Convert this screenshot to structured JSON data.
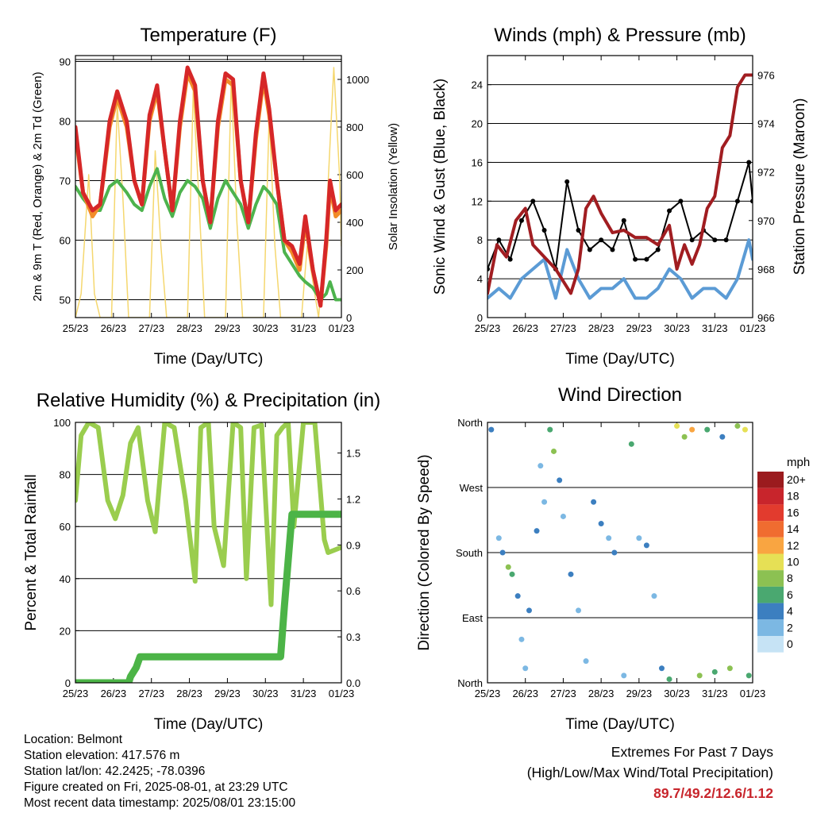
{
  "panels": [
    {
      "id": "temperature",
      "title": "Temperature (F)",
      "xlabel": "Time (Day/UTC)",
      "ylabel_left": "2m & 9m T (Red, Orange) & 2m Td (Green)",
      "ylabel_right": "Solar Insolation (Yellow)",
      "x_ticks": [
        "25/23",
        "26/23",
        "27/23",
        "28/23",
        "29/23",
        "30/23",
        "31/23",
        "01/23"
      ],
      "y_left_ticks": [
        "50",
        "60",
        "70",
        "80",
        "90"
      ],
      "y_right_ticks": [
        "0",
        "200",
        "400",
        "600",
        "800",
        "1000"
      ]
    },
    {
      "id": "winds",
      "title": "Winds (mph) & Pressure (mb)",
      "xlabel": "Time (Day/UTC)",
      "ylabel_left": "Sonic Wind & Gust (Blue, Black)",
      "ylabel_right": "Station Pressure (Maroon)",
      "x_ticks": [
        "25/23",
        "26/23",
        "27/23",
        "28/23",
        "29/23",
        "30/23",
        "31/23",
        "01/23"
      ],
      "y_left_ticks": [
        "0",
        "4",
        "8",
        "12",
        "16",
        "20",
        "24"
      ],
      "y_right_ticks": [
        "966",
        "968",
        "970",
        "972",
        "974",
        "976"
      ]
    },
    {
      "id": "rh",
      "title": "Relative Humidity (%) & Precipitation (in)",
      "xlabel": "Time (Day/UTC)",
      "ylabel_left": "Percent & Total Rainfall",
      "x_ticks": [
        "25/23",
        "26/23",
        "27/23",
        "28/23",
        "29/23",
        "30/23",
        "31/23",
        "01/23"
      ],
      "y_left_ticks": [
        "0",
        "20",
        "40",
        "60",
        "80",
        "100"
      ],
      "y_right_ticks": [
        "0.0",
        "0.3",
        "0.6",
        "0.9",
        "1.2",
        "1.5"
      ]
    },
    {
      "id": "direction",
      "title": "Wind Direction",
      "xlabel": "Time (Day/UTC)",
      "ylabel_left": "Direction (Colored By Speed)",
      "x_ticks": [
        "25/23",
        "26/23",
        "27/23",
        "28/23",
        "29/23",
        "30/23",
        "31/23",
        "01/23"
      ],
      "y_left_ticks": [
        "North",
        "East",
        "South",
        "West",
        "North"
      ]
    }
  ],
  "legend": {
    "title": "mph",
    "labels": [
      "20+",
      "18",
      "16",
      "14",
      "12",
      "10",
      "8",
      "6",
      "4",
      "2",
      "0"
    ],
    "colors": [
      "#9b1b1e",
      "#c8252c",
      "#e23b2e",
      "#f06c30",
      "#f9a541",
      "#e6e055",
      "#8cc152",
      "#4aa870",
      "#3c7fc0",
      "#7cb8e3",
      "#c6e3f5"
    ]
  },
  "info": {
    "location": "Location: Belmont",
    "elevation": "Station elevation: 417.576 m",
    "latlon": "Station lat/lon: 42.2425; -78.0396",
    "created": "Figure created on Fri, 2025-08-01, at 23:29 UTC",
    "timestamp": "Most recent data timestamp: 2025/08/01 23:15:00"
  },
  "extremes": {
    "title": "Extremes For Past 7 Days",
    "subtitle": "(High/Low/Max Wind/Total Precipitation)",
    "values": "89.7/49.2/12.6/1.12"
  },
  "chart_data": [
    {
      "type": "line",
      "x_unit": "days since 25/23",
      "xlim": [
        0,
        7
      ],
      "ylim": [
        47,
        91
      ],
      "y2lim": [
        0,
        1100
      ],
      "series": [
        {
          "name": "2m T",
          "color": "#d62728",
          "x": [
            0,
            0.2,
            0.45,
            0.65,
            0.9,
            1.1,
            1.35,
            1.55,
            1.75,
            1.95,
            2.15,
            2.35,
            2.55,
            2.75,
            2.95,
            3.15,
            3.35,
            3.55,
            3.75,
            3.95,
            4.15,
            4.35,
            4.55,
            4.75,
            4.95,
            5.1,
            5.3,
            5.5,
            5.7,
            5.9,
            6.05,
            6.25,
            6.45,
            6.6,
            6.7,
            6.85,
            7
          ],
          "y": [
            79,
            68,
            65,
            66,
            80,
            85,
            80,
            70,
            66,
            81,
            86,
            75,
            65,
            80,
            89,
            86,
            70,
            63,
            80,
            88,
            87,
            70,
            63,
            78,
            88,
            82,
            70,
            60,
            59,
            56,
            64,
            55,
            49,
            60,
            70,
            65,
            66
          ]
        },
        {
          "name": "9m T",
          "color": "#f28c28",
          "x": [
            0,
            0.2,
            0.45,
            0.65,
            0.9,
            1.1,
            1.35,
            1.55,
            1.75,
            1.95,
            2.15,
            2.35,
            2.55,
            2.75,
            2.95,
            3.15,
            3.35,
            3.55,
            3.75,
            3.95,
            4.15,
            4.35,
            4.55,
            4.75,
            4.95,
            5.1,
            5.3,
            5.5,
            5.7,
            5.9,
            6.05,
            6.25,
            6.45,
            6.6,
            6.7,
            6.85,
            7
          ],
          "y": [
            78,
            68,
            64,
            66,
            79,
            84,
            79,
            70,
            66,
            80,
            85,
            75,
            65,
            79,
            88,
            85,
            70,
            63,
            79,
            87,
            86,
            70,
            63,
            77,
            87,
            81,
            70,
            60,
            58,
            55,
            63,
            55,
            49,
            59,
            69,
            64,
            65
          ]
        },
        {
          "name": "2m Td",
          "color": "#4db34d",
          "x": [
            0,
            0.2,
            0.45,
            0.65,
            0.9,
            1.1,
            1.35,
            1.55,
            1.75,
            1.95,
            2.15,
            2.35,
            2.55,
            2.75,
            2.95,
            3.15,
            3.35,
            3.55,
            3.75,
            3.95,
            4.15,
            4.35,
            4.55,
            4.75,
            4.95,
            5.1,
            5.3,
            5.5,
            5.7,
            5.9,
            6.05,
            6.25,
            6.45,
            6.6,
            6.7,
            6.85,
            7
          ],
          "y": [
            69,
            67,
            65,
            65,
            69,
            70,
            68,
            66,
            65,
            69,
            72,
            67,
            64,
            68,
            70,
            69,
            67,
            62,
            67,
            70,
            68,
            66,
            62,
            66,
            69,
            68,
            66,
            58,
            56,
            54,
            53,
            52,
            50,
            51,
            53,
            50,
            50
          ]
        },
        {
          "name": "Solar Insolation",
          "color": "#f5d76e",
          "axis": "right",
          "x": [
            0,
            0.15,
            0.35,
            0.5,
            0.65,
            0.95,
            1.1,
            1.25,
            1.4,
            1.95,
            2.1,
            2.25,
            2.4,
            2.95,
            3.1,
            3.25,
            3.4,
            3.95,
            4.1,
            4.25,
            4.4,
            4.95,
            5.1,
            5.25,
            5.4,
            5.95,
            6.1,
            6.25,
            6.4,
            6.6,
            6.8,
            6.95,
            7
          ],
          "y": [
            0,
            100,
            600,
            100,
            0,
            0,
            900,
            500,
            0,
            0,
            700,
            300,
            0,
            0,
            950,
            500,
            0,
            0,
            1000,
            400,
            0,
            0,
            850,
            300,
            0,
            0,
            300,
            150,
            0,
            400,
            1050,
            600,
            300
          ]
        }
      ]
    },
    {
      "type": "line",
      "x_unit": "days since 25/23",
      "xlim": [
        0,
        7
      ],
      "ylim": [
        0,
        27
      ],
      "y2lim": [
        966,
        976.8
      ],
      "series": [
        {
          "name": "Sonic Wind",
          "color": "#5b9bd5",
          "x": [
            0,
            0.3,
            0.6,
            0.9,
            1.2,
            1.5,
            1.8,
            2.1,
            2.4,
            2.7,
            3.0,
            3.3,
            3.6,
            3.9,
            4.2,
            4.5,
            4.8,
            5.1,
            5.4,
            5.7,
            6.0,
            6.3,
            6.6,
            6.9,
            7
          ],
          "y": [
            2,
            3,
            2,
            4,
            5,
            6,
            2,
            7,
            4,
            2,
            3,
            3,
            4,
            2,
            2,
            3,
            5,
            4,
            2,
            3,
            3,
            2,
            4,
            8,
            6
          ]
        },
        {
          "name": "Gust",
          "color": "#000000",
          "x": [
            0,
            0.3,
            0.6,
            0.9,
            1.2,
            1.5,
            1.8,
            2.1,
            2.4,
            2.7,
            3.0,
            3.3,
            3.6,
            3.9,
            4.2,
            4.5,
            4.8,
            5.1,
            5.4,
            5.7,
            6.0,
            6.3,
            6.6,
            6.9,
            7
          ],
          "y": [
            5,
            8,
            6,
            10,
            12,
            9,
            5,
            14,
            9,
            7,
            8,
            7,
            10,
            6,
            6,
            7,
            11,
            12,
            8,
            9,
            8,
            8,
            12,
            16,
            12
          ]
        },
        {
          "name": "Station Pressure",
          "color": "#a11d21",
          "axis": "right",
          "x": [
            0,
            0.25,
            0.5,
            0.75,
            1.0,
            1.2,
            1.5,
            1.8,
            2.0,
            2.2,
            2.4,
            2.6,
            2.8,
            3.0,
            3.3,
            3.6,
            3.9,
            4.2,
            4.5,
            4.8,
            5.0,
            5.2,
            5.4,
            5.6,
            5.8,
            6.0,
            6.2,
            6.4,
            6.6,
            6.8,
            7
          ],
          "y": [
            967,
            969,
            968.5,
            970,
            970.5,
            969,
            968.5,
            968,
            967.5,
            967,
            968,
            970.5,
            971,
            970.3,
            969.5,
            969.6,
            969.3,
            969.3,
            969,
            969.8,
            968,
            969,
            968.2,
            969,
            970.5,
            971,
            973,
            973.5,
            975.5,
            976,
            976
          ]
        }
      ]
    },
    {
      "type": "line",
      "x_unit": "days since 25/23",
      "xlim": [
        0,
        7
      ],
      "ylim": [
        0,
        100
      ],
      "y2lim": [
        0,
        1.7
      ],
      "series": [
        {
          "name": "Relative Humidity",
          "color": "#9acd4e",
          "x": [
            0,
            0.15,
            0.35,
            0.6,
            0.85,
            1.05,
            1.25,
            1.45,
            1.65,
            1.9,
            2.1,
            2.35,
            2.6,
            2.9,
            3.15,
            3.3,
            3.5,
            3.65,
            3.9,
            4.15,
            4.35,
            4.5,
            4.7,
            4.9,
            5.15,
            5.3,
            5.45,
            5.6,
            5.75,
            6.0,
            6.3,
            6.55,
            6.65,
            7
          ],
          "y": [
            70,
            95,
            100,
            98,
            70,
            63,
            72,
            92,
            98,
            70,
            58,
            100,
            98,
            70,
            39,
            98,
            100,
            60,
            45,
            100,
            98,
            40,
            98,
            99,
            30,
            95,
            98,
            100,
            60,
            100,
            100,
            55,
            50,
            52
          ]
        },
        {
          "name": "Total Rainfall",
          "color": "#4cb447",
          "axis": "right",
          "x": [
            0,
            1.4,
            1.45,
            1.6,
            1.7,
            2.0,
            3.0,
            4.0,
            5.0,
            5.4,
            5.5,
            5.6,
            5.7,
            5.8,
            6.0,
            7.0
          ],
          "y": [
            0,
            0,
            0.04,
            0.1,
            0.17,
            0.17,
            0.17,
            0.17,
            0.17,
            0.17,
            0.5,
            0.8,
            1.1,
            1.1,
            1.1,
            1.1
          ]
        }
      ]
    },
    {
      "type": "scatter",
      "x_unit": "days since 25/23",
      "xlim": [
        0,
        7
      ],
      "y_categories": [
        "North",
        "East",
        "South",
        "West",
        "North"
      ],
      "ylim": [
        0,
        360
      ],
      "points": [
        {
          "x": 0.1,
          "y": 350,
          "s": 4
        },
        {
          "x": 0.3,
          "y": 200,
          "s": 3
        },
        {
          "x": 0.4,
          "y": 180,
          "s": 4
        },
        {
          "x": 0.55,
          "y": 160,
          "s": 8
        },
        {
          "x": 0.65,
          "y": 150,
          "s": 6
        },
        {
          "x": 0.8,
          "y": 120,
          "s": 5
        },
        {
          "x": 0.9,
          "y": 60,
          "s": 3
        },
        {
          "x": 1.0,
          "y": 20,
          "s": 2
        },
        {
          "x": 1.1,
          "y": 100,
          "s": 4
        },
        {
          "x": 1.3,
          "y": 210,
          "s": 5
        },
        {
          "x": 1.4,
          "y": 300,
          "s": 3
        },
        {
          "x": 1.5,
          "y": 250,
          "s": 2
        },
        {
          "x": 1.65,
          "y": 350,
          "s": 6
        },
        {
          "x": 1.75,
          "y": 320,
          "s": 8
        },
        {
          "x": 1.9,
          "y": 280,
          "s": 4
        },
        {
          "x": 2.0,
          "y": 230,
          "s": 3
        },
        {
          "x": 2.2,
          "y": 150,
          "s": 4
        },
        {
          "x": 2.4,
          "y": 100,
          "s": 3
        },
        {
          "x": 2.6,
          "y": 30,
          "s": 2
        },
        {
          "x": 2.8,
          "y": 250,
          "s": 5
        },
        {
          "x": 3.0,
          "y": 220,
          "s": 4
        },
        {
          "x": 3.2,
          "y": 200,
          "s": 3
        },
        {
          "x": 3.35,
          "y": 180,
          "s": 4
        },
        {
          "x": 3.6,
          "y": 10,
          "s": 3
        },
        {
          "x": 3.8,
          "y": 330,
          "s": 6
        },
        {
          "x": 4.0,
          "y": 200,
          "s": 3
        },
        {
          "x": 4.2,
          "y": 190,
          "s": 4
        },
        {
          "x": 4.4,
          "y": 120,
          "s": 2
        },
        {
          "x": 4.6,
          "y": 20,
          "s": 5
        },
        {
          "x": 4.8,
          "y": 5,
          "s": 6
        },
        {
          "x": 5.0,
          "y": 355,
          "s": 10
        },
        {
          "x": 5.2,
          "y": 340,
          "s": 8
        },
        {
          "x": 5.4,
          "y": 350,
          "s": 12
        },
        {
          "x": 5.6,
          "y": 10,
          "s": 9
        },
        {
          "x": 5.8,
          "y": 350,
          "s": 6
        },
        {
          "x": 6.0,
          "y": 15,
          "s": 6
        },
        {
          "x": 6.2,
          "y": 340,
          "s": 5
        },
        {
          "x": 6.4,
          "y": 20,
          "s": 8
        },
        {
          "x": 6.6,
          "y": 355,
          "s": 9
        },
        {
          "x": 6.8,
          "y": 350,
          "s": 10
        },
        {
          "x": 6.9,
          "y": 10,
          "s": 7
        }
      ]
    }
  ]
}
